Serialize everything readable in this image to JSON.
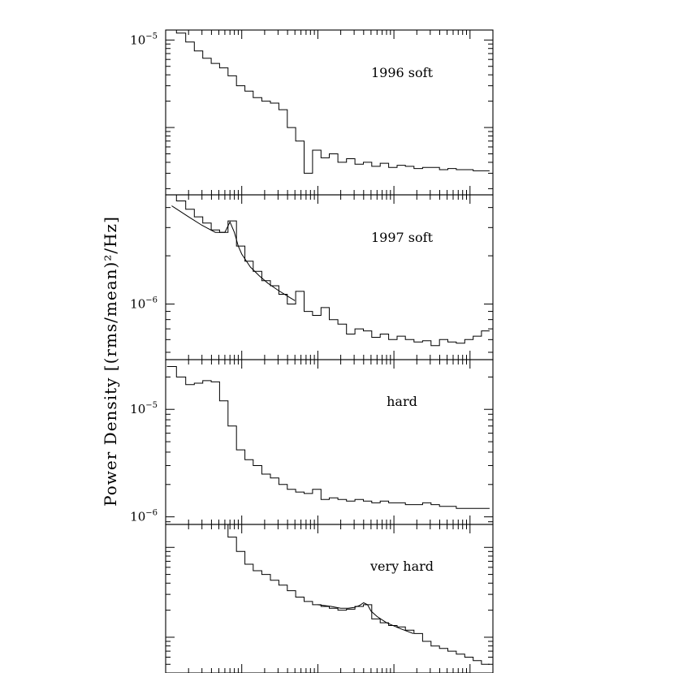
{
  "chart_data": {
    "type": "line",
    "ylabel": "Power Density [(rms/mean)²/Hz]",
    "xlabel": "",
    "x_scale": "log",
    "x_range": [
      0.01,
      200
    ],
    "panels": [
      {
        "label": "1996 soft",
        "y_scale": "log",
        "y_range": [
          1.7e-07,
          1.3e-05
        ],
        "y_ticks": [
          {
            "value": 1e-05,
            "base": "10",
            "exp": "−5"
          }
        ],
        "series": {
          "x": [
            0.012,
            0.016,
            0.021,
            0.027,
            0.035,
            0.045,
            0.058,
            0.075,
            0.097,
            0.125,
            0.16,
            0.21,
            0.27,
            0.35,
            0.45,
            0.58,
            0.75,
            0.97,
            1.25,
            1.6,
            2.1,
            2.7,
            3.5,
            4.5,
            5.8,
            7.5,
            9.7,
            12.5,
            16,
            21,
            27,
            35,
            45,
            58,
            75,
            97,
            125,
            160
          ],
          "y": [
            1.3e-05,
            1.2e-05,
            9.5e-06,
            7.5e-06,
            6.2e-06,
            5.4e-06,
            4.8e-06,
            3.9e-06,
            3e-06,
            2.6e-06,
            2.2e-06,
            2e-06,
            1.9e-06,
            1.6e-06,
            1e-06,
            7e-07,
            3e-07,
            5.5e-07,
            4.5e-07,
            5e-07,
            4e-07,
            4.4e-07,
            3.8e-07,
            4e-07,
            3.6e-07,
            3.9e-07,
            3.5e-07,
            3.7e-07,
            3.6e-07,
            3.4e-07,
            3.5e-07,
            3.5e-07,
            3.3e-07,
            3.4e-07,
            3.3e-07,
            3.3e-07,
            3.2e-07,
            3.2e-07
          ]
        }
      },
      {
        "label": "1997 soft",
        "y_scale": "log",
        "y_range": [
          4.5e-07,
          4.8e-06
        ],
        "y_ticks": [
          {
            "value": 1e-06,
            "base": "10",
            "exp": "−6"
          }
        ],
        "series": {
          "x": [
            0.012,
            0.016,
            0.021,
            0.027,
            0.035,
            0.045,
            0.058,
            0.075,
            0.097,
            0.125,
            0.16,
            0.21,
            0.27,
            0.35,
            0.45,
            0.58,
            0.75,
            0.97,
            1.25,
            1.6,
            2.1,
            2.7,
            3.5,
            4.5,
            5.8,
            7.5,
            9.7,
            12.5,
            16,
            21,
            27,
            35,
            45,
            58,
            75,
            97,
            125,
            160
          ],
          "y": [
            4.8e-06,
            4.4e-06,
            3.9e-06,
            3.5e-06,
            3.2e-06,
            2.9e-06,
            2.8e-06,
            3.3e-06,
            2.3e-06,
            1.85e-06,
            1.6e-06,
            1.4e-06,
            1.3e-06,
            1.15e-06,
            1e-06,
            1.2e-06,
            9e-07,
            8.5e-07,
            9.5e-07,
            8e-07,
            7.5e-07,
            6.5e-07,
            7e-07,
            6.8e-07,
            6.2e-07,
            6.5e-07,
            6e-07,
            6.3e-07,
            6e-07,
            5.8e-07,
            5.9e-07,
            5.5e-07,
            6e-07,
            5.8e-07,
            5.7e-07,
            6e-07,
            6.3e-07,
            6.8e-07
          ]
        },
        "fit": {
          "x": [
            0.012,
            0.02,
            0.03,
            0.045,
            0.06,
            0.07,
            0.08,
            0.09,
            0.1,
            0.13,
            0.17,
            0.22,
            0.3,
            0.4,
            0.5
          ],
          "y": [
            4.1e-06,
            3.5e-06,
            3.1e-06,
            2.8e-06,
            2.8e-06,
            3.25e-06,
            2.8e-06,
            2.3e-06,
            2.05e-06,
            1.7e-06,
            1.5e-06,
            1.35e-06,
            1.22e-06,
            1.12e-06,
            1.05e-06
          ]
        }
      },
      {
        "label": "hard",
        "y_scale": "log",
        "y_range": [
          8.5e-07,
          2.9e-05
        ],
        "y_ticks": [
          {
            "value": 1e-05,
            "base": "10",
            "exp": "−5"
          },
          {
            "value": 1e-06,
            "base": "10",
            "exp": "−6"
          }
        ],
        "series": {
          "x": [
            0.012,
            0.016,
            0.021,
            0.027,
            0.035,
            0.045,
            0.058,
            0.075,
            0.097,
            0.125,
            0.16,
            0.21,
            0.27,
            0.35,
            0.45,
            0.58,
            0.75,
            0.97,
            1.25,
            1.6,
            2.1,
            2.7,
            3.5,
            4.5,
            5.8,
            7.5,
            9.7,
            12.5,
            16,
            21,
            27,
            35,
            45,
            58,
            75,
            97,
            125,
            160
          ],
          "y": [
            2.5e-05,
            2e-05,
            1.7e-05,
            1.75e-05,
            1.85e-05,
            1.8e-05,
            1.2e-05,
            7e-06,
            4.2e-06,
            3.4e-06,
            3e-06,
            2.5e-06,
            2.3e-06,
            2e-06,
            1.8e-06,
            1.7e-06,
            1.65e-06,
            1.8e-06,
            1.45e-06,
            1.5e-06,
            1.45e-06,
            1.4e-06,
            1.45e-06,
            1.4e-06,
            1.35e-06,
            1.4e-06,
            1.35e-06,
            1.35e-06,
            1.3e-06,
            1.3e-06,
            1.35e-06,
            1.3e-06,
            1.25e-06,
            1.25e-06,
            1.2e-06,
            1.2e-06,
            1.2e-06,
            1.2e-06
          ]
        }
      },
      {
        "label": "very hard",
        "y_scale": "log",
        "y_range": [
          4e-07,
          1.8e-05
        ],
        "y_ticks": [],
        "series": {
          "x": [
            0.058,
            0.075,
            0.097,
            0.125,
            0.16,
            0.21,
            0.27,
            0.35,
            0.45,
            0.58,
            0.75,
            0.97,
            1.25,
            1.6,
            2.1,
            2.7,
            3.5,
            4.5,
            5.8,
            7.5,
            9.7,
            12.5,
            16,
            21,
            27,
            35,
            45,
            58,
            75,
            97,
            125,
            160
          ],
          "y": [
            1.8e-05,
            1.3e-05,
            9e-06,
            6.5e-06,
            5.5e-06,
            5e-06,
            4.3e-06,
            3.8e-06,
            3.3e-06,
            2.8e-06,
            2.5e-06,
            2.3e-06,
            2.2e-06,
            2.1e-06,
            2e-06,
            2.05e-06,
            2.2e-06,
            2.3e-06,
            1.6e-06,
            1.45e-06,
            1.35e-06,
            1.3e-06,
            1.2e-06,
            1.1e-06,
            9e-07,
            8e-07,
            7.5e-07,
            7e-07,
            6.5e-07,
            6e-07,
            5.5e-07,
            5e-07
          ]
        },
        "fit": {
          "x": [
            1.0,
            1.5,
            2.0,
            2.5,
            3.0,
            3.5,
            4.0,
            4.5,
            5.0,
            6.0,
            8.0,
            12,
            18
          ],
          "y": [
            2.3e-06,
            2.2e-06,
            2.1e-06,
            2.1e-06,
            2.15e-06,
            2.25e-06,
            2.42e-06,
            2.3e-06,
            1.95e-06,
            1.7e-06,
            1.45e-06,
            1.25e-06,
            1.1e-06
          ]
        }
      }
    ]
  }
}
